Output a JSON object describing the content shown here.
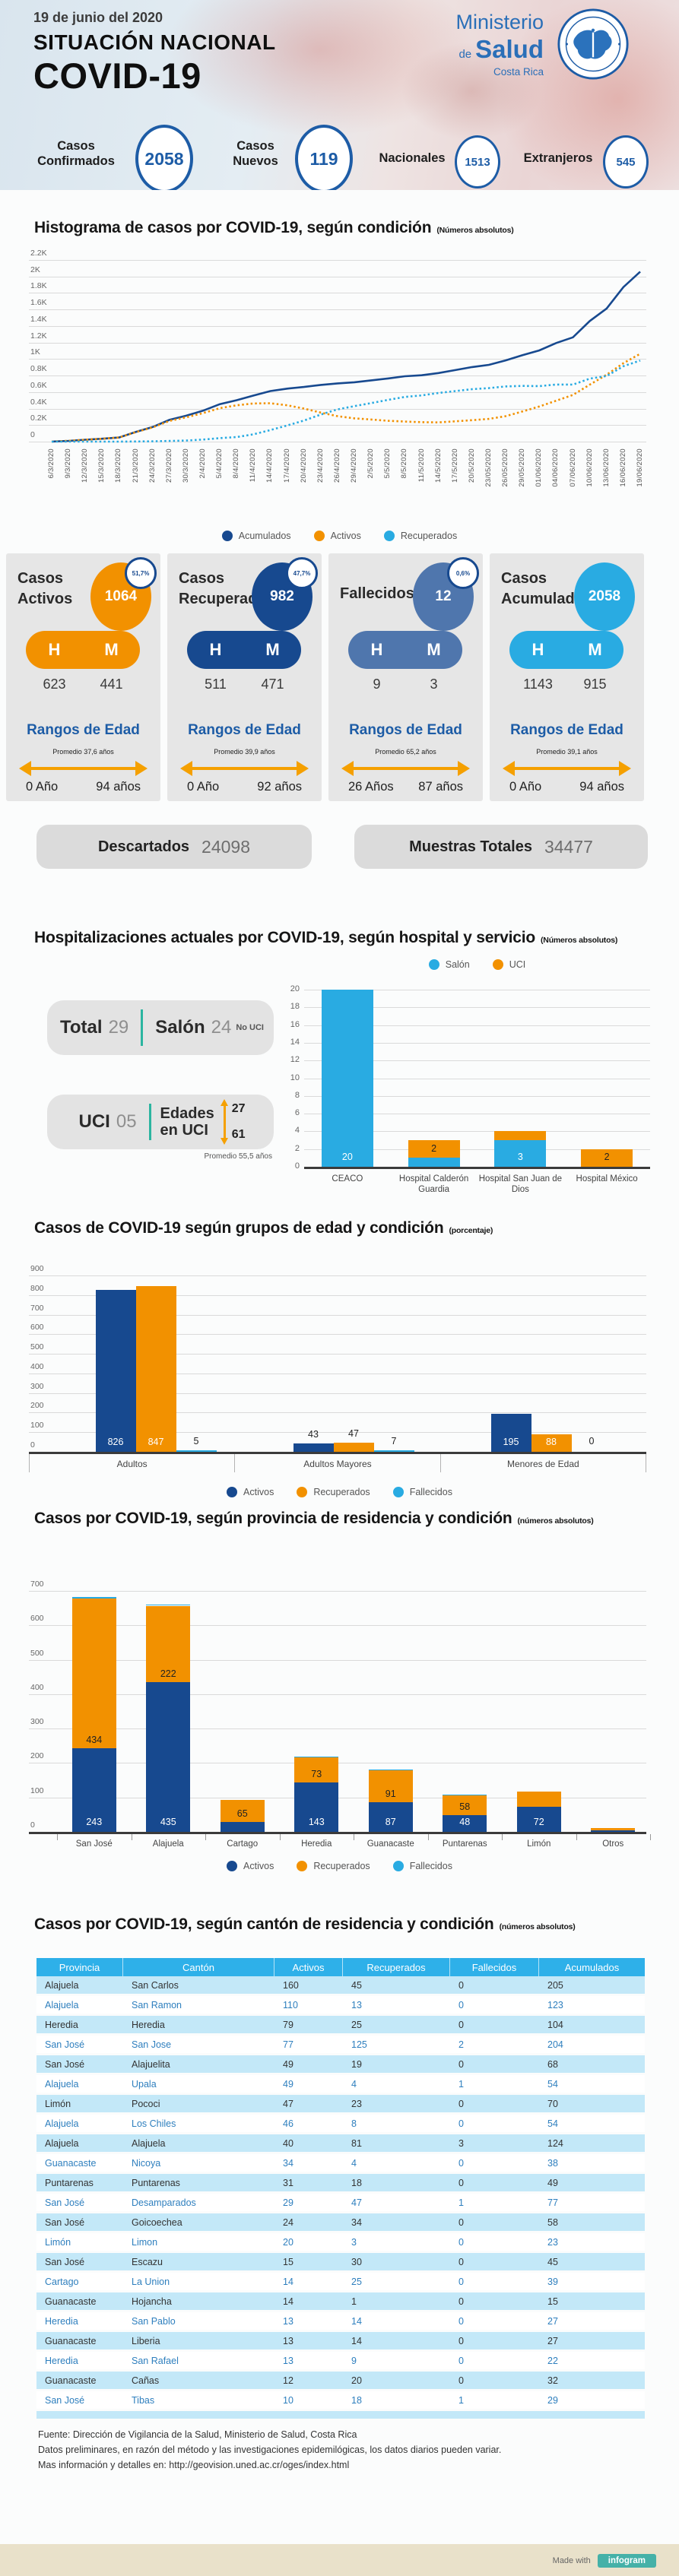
{
  "colors": {
    "accent_blue": "#1d5ca6",
    "dark_blue": "#17498f",
    "orange": "#f29100",
    "light_blue": "#29abe2",
    "steel_blue": "#4f76ad",
    "teal": "#2bb5a0",
    "infogram_teal": "#45b1a8"
  },
  "header": {
    "date": "19 de junio del 2020",
    "title_line1": "SITUACIÓN NACIONAL",
    "title_line2": "COVID-19",
    "ministry": {
      "line1": "Ministerio",
      "line2_small": "de",
      "line2_big": "Salud",
      "line3": "Costa Rica"
    }
  },
  "stats": [
    {
      "label1": "Casos",
      "label2": "Confirmados",
      "value": "2058",
      "size": "lg"
    },
    {
      "label1": "Casos",
      "label2": "Nuevos",
      "value": "119",
      "size": "lg"
    },
    {
      "label1": "Nacionales",
      "label2": "",
      "value": "1513",
      "size": "sm"
    },
    {
      "label1": "Extranjeros",
      "label2": "",
      "value": "545",
      "size": "sm"
    }
  ],
  "sections": {
    "histogram": {
      "title": "Histograma de casos por COVID-19, según condición",
      "subtitle": "(Números absolutos)"
    },
    "hospital": {
      "title": "Hospitalizaciones actuales por COVID-19, según hospital y servicio",
      "subtitle": "(Números absolutos)"
    },
    "age": {
      "title": "Casos de COVID-19 según grupos de edad y condición",
      "subtitle": "(porcentaje)"
    },
    "province": {
      "title": "Casos por COVID-19, según provincia de residencia y condición",
      "subtitle": "(números absolutos)"
    },
    "canton": {
      "title": "Casos por COVID-19, según cantón de residencia y condición",
      "subtitle": "(números absolutos)"
    }
  },
  "cards_common": {
    "h": "H",
    "m": "M",
    "rangos": "Rangos de Edad"
  },
  "cards": [
    {
      "title1": "Casos",
      "title2": "Activos",
      "value": "1064",
      "pct": "51,7%",
      "color": "#f29100",
      "hombres": "623",
      "mujeres": "441",
      "promedio": "Promedio 37,6 años",
      "edad_min": "0 Año",
      "edad_max": "94 años"
    },
    {
      "title1": "Casos",
      "title2": "Recuperados",
      "value": "982",
      "pct": "47,7%",
      "color": "#17498f",
      "hombres": "511",
      "mujeres": "471",
      "promedio": "Promedio 39,9 años",
      "edad_min": "0 Año",
      "edad_max": "92 años"
    },
    {
      "title1": "Fallecidos",
      "title2": "",
      "value": "12",
      "pct": "0,6%",
      "color": "#4f76ad",
      "hombres": "9",
      "mujeres": "3",
      "promedio": "Promedio 65,2 años",
      "edad_min": "26 Años",
      "edad_max": "87 años"
    },
    {
      "title1": "Casos",
      "title2": "Acumulados",
      "value": "2058",
      "pct": "",
      "color": "#29abe2",
      "hombres": "1143",
      "mujeres": "915",
      "promedio": "Promedio 39,1 años",
      "edad_min": "0 Año",
      "edad_max": "94 años"
    }
  ],
  "pills": {
    "descartados_label": "Descartados",
    "descartados_value": "24098",
    "muestras_label": "Muestras Totales",
    "muestras_value": "34477"
  },
  "hospital_info": {
    "total_label": "Total",
    "total_value": "29",
    "salon_label": "Salón",
    "salon_value": "24",
    "salon_note": "No UCI",
    "uci_label": "UCI",
    "uci_value": "05",
    "edades_line1": "Edades",
    "edades_line2": "en UCI",
    "edad_min": "27",
    "edad_max": "61",
    "promedio": "Promedio 55,5 años"
  },
  "table": {
    "headers": [
      "Provincia",
      "Cantón",
      "Activos",
      "Recuperados",
      "Fallecidos",
      "Acumulados"
    ],
    "rows": [
      [
        "Alajuela",
        "San Carlos",
        "160",
        "45",
        "0",
        "205"
      ],
      [
        "Alajuela",
        "San Ramon",
        "110",
        "13",
        "0",
        "123"
      ],
      [
        "Heredia",
        "Heredia",
        "79",
        "25",
        "0",
        "104"
      ],
      [
        "San José",
        "San Jose",
        "77",
        "125",
        "2",
        "204"
      ],
      [
        "San José",
        "Alajuelita",
        "49",
        "19",
        "0",
        "68"
      ],
      [
        "Alajuela",
        "Upala",
        "49",
        "4",
        "1",
        "54"
      ],
      [
        "Limón",
        "Pococi",
        "47",
        "23",
        "0",
        "70"
      ],
      [
        "Alajuela",
        "Los Chiles",
        "46",
        "8",
        "0",
        "54"
      ],
      [
        "Alajuela",
        "Alajuela",
        "40",
        "81",
        "3",
        "124"
      ],
      [
        "Guanacaste",
        "Nicoya",
        "34",
        "4",
        "0",
        "38"
      ],
      [
        "Puntarenas",
        "Puntarenas",
        "31",
        "18",
        "0",
        "49"
      ],
      [
        "San José",
        "Desamparados",
        "29",
        "47",
        "1",
        "77"
      ],
      [
        "San José",
        "Goicoechea",
        "24",
        "34",
        "0",
        "58"
      ],
      [
        "Limón",
        "Limon",
        "20",
        "3",
        "0",
        "23"
      ],
      [
        "San José",
        "Escazu",
        "15",
        "30",
        "0",
        "45"
      ],
      [
        "Cartago",
        "La Union",
        "14",
        "25",
        "0",
        "39"
      ],
      [
        "Guanacaste",
        "Hojancha",
        "14",
        "1",
        "0",
        "15"
      ],
      [
        "Heredia",
        "San Pablo",
        "13",
        "14",
        "0",
        "27"
      ],
      [
        "Guanacaste",
        "Liberia",
        "13",
        "14",
        "0",
        "27"
      ],
      [
        "Heredia",
        "San Rafael",
        "13",
        "9",
        "0",
        "22"
      ],
      [
        "Guanacaste",
        "Cañas",
        "12",
        "20",
        "0",
        "32"
      ],
      [
        "San José",
        "Tibas",
        "10",
        "18",
        "1",
        "29"
      ]
    ]
  },
  "footer": {
    "line1": "Fuente: Dirección de Vigilancia de la Salud, Ministerio de Salud, Costa Rica",
    "line2": "Datos preliminares, en razón del método y las investigaciones epidemilógicas, los datos diarios pueden variar.",
    "line3": "Mas información y detalles en: http://geovision.uned.ac.cr/oges/index.html"
  },
  "made_with": {
    "prefix": "Made with",
    "brand": "infogram"
  },
  "chart_data": [
    {
      "id": "histogram",
      "type": "line",
      "title": "Histograma de casos por COVID-19, según condición",
      "subtitle": "(Números absolutos)",
      "x": [
        "6/3/2020",
        "9/3/2020",
        "12/3/2020",
        "15/3/2020",
        "18/3/2020",
        "21/3/2020",
        "24/3/2020",
        "27/3/2020",
        "30/3/2020",
        "2/4/2020",
        "5/4/2020",
        "8/4/2020",
        "11/4/2020",
        "14/4/2020",
        "17/4/2020",
        "20/4/2020",
        "23/4/2020",
        "26/4/2020",
        "29/4/2020",
        "2/5/2020",
        "5/5/2020",
        "8/5/2020",
        "11/5/2020",
        "14/5/2020",
        "17/5/2020",
        "20/5/2020",
        "23/05/2020",
        "26/05/2020",
        "29/05/2020",
        "01/06/2020",
        "04/06/2020",
        "07/06/2020",
        "10/06/2020",
        "13/06/2020",
        "16/06/2020",
        "19/06/2020"
      ],
      "y_ticks": [
        "2.2K",
        "2K",
        "1.8K",
        "1.6K",
        "1.4K",
        "1.2K",
        "1K",
        "0.8K",
        "0.6K",
        "0.4K",
        "0.2K",
        "0"
      ],
      "ylim": [
        0,
        2200
      ],
      "grid": true,
      "legend_position": "bottom",
      "series": [
        {
          "name": "Acumulados",
          "color": "#17498f",
          "style": "solid",
          "values": [
            1,
            9,
            23,
            35,
            50,
            117,
            177,
            263,
            314,
            375,
            454,
            502,
            558,
            612,
            642,
            662,
            687,
            705,
            719,
            742,
            765,
            792,
            804,
            830,
            866,
            903,
            930,
            984,
            1047,
            1105,
            1194,
            1263,
            1461,
            1612,
            1871,
            2058
          ]
        },
        {
          "name": "Activos",
          "color": "#f29100",
          "style": "dashed",
          "values": [
            1,
            9,
            23,
            35,
            50,
            115,
            172,
            250,
            295,
            345,
            405,
            440,
            462,
            465,
            440,
            400,
            352,
            308,
            282,
            268,
            252,
            243,
            236,
            233,
            246,
            260,
            275,
            308,
            365,
            425,
            495,
            565,
            690,
            810,
            950,
            1064
          ]
        },
        {
          "name": "Recuperados",
          "color": "#29abe2",
          "style": "dashed",
          "values": [
            0,
            0,
            0,
            0,
            0,
            2,
            4,
            8,
            13,
            25,
            42,
            55,
            88,
            140,
            195,
            255,
            328,
            390,
            430,
            467,
            505,
            541,
            560,
            589,
            612,
            635,
            648,
            668,
            675,
            672,
            691,
            690,
            763,
            794,
            913,
            982
          ]
        }
      ]
    },
    {
      "id": "hospital",
      "type": "bar",
      "title": "Hospitalizaciones actuales por COVID-19, según hospital y servicio",
      "categories": [
        "CEACO",
        "Hospital Calderón Guardia",
        "Hospital San Juan de Dios",
        "Hospital México"
      ],
      "ylim": [
        0,
        20
      ],
      "y_ticks": [
        "20",
        "18",
        "16",
        "14",
        "12",
        "10",
        "8",
        "6",
        "4",
        "2",
        "0"
      ],
      "stacked": true,
      "legend_position": "top",
      "series": [
        {
          "name": "Salón",
          "color": "#29abe2",
          "values": [
            20,
            1,
            3,
            0
          ],
          "labels": [
            "20",
            "",
            "3",
            ""
          ]
        },
        {
          "name": "UCI",
          "color": "#f29100",
          "values": [
            0,
            2,
            1,
            2
          ],
          "labels": [
            "",
            "2",
            "",
            "2"
          ]
        }
      ]
    },
    {
      "id": "age",
      "type": "bar",
      "title": "Casos de COVID-19 según grupos de edad y condición",
      "categories": [
        "Adultos",
        "Adultos Mayores",
        "Menores de Edad"
      ],
      "ylim": [
        0,
        900
      ],
      "y_ticks": [
        "900",
        "800",
        "700",
        "600",
        "500",
        "400",
        "300",
        "200",
        "100",
        "0"
      ],
      "stacked": false,
      "legend_position": "bottom",
      "series": [
        {
          "name": "Activos",
          "color": "#17498f",
          "values": [
            826,
            43,
            195
          ]
        },
        {
          "name": "Recuperados",
          "color": "#f29100",
          "values": [
            847,
            47,
            88
          ]
        },
        {
          "name": "Fallecidos",
          "color": "#29abe2",
          "values": [
            5,
            7,
            0
          ]
        }
      ]
    },
    {
      "id": "province",
      "type": "bar",
      "title": "Casos por COVID-19, según provincia de residencia y condición",
      "categories": [
        "San José",
        "Alajuela",
        "Cartago",
        "Heredia",
        "Guanacaste",
        "Puntarenas",
        "Limón",
        "Otros"
      ],
      "ylim": [
        0,
        700
      ],
      "y_ticks": [
        "700",
        "600",
        "500",
        "400",
        "300",
        "200",
        "100",
        "0"
      ],
      "stacked": true,
      "legend_position": "bottom",
      "series": [
        {
          "name": "Activos",
          "color": "#17498f",
          "values": [
            243,
            435,
            28,
            143,
            87,
            48,
            72,
            4
          ],
          "labels": [
            "243",
            "435",
            "",
            "143",
            "87",
            "48",
            "72",
            ""
          ]
        },
        {
          "name": "Recuperados",
          "color": "#f29100",
          "values": [
            434,
            222,
            65,
            73,
            91,
            58,
            45,
            8
          ],
          "labels": [
            "434",
            "222",
            "65",
            "73",
            "91",
            "58",
            "",
            ""
          ]
        },
        {
          "name": "Fallecidos",
          "color": "#29abe2",
          "values": [
            5,
            4,
            0,
            1,
            1,
            1,
            0,
            0
          ],
          "labels": [
            "",
            "",
            "",
            "",
            "",
            "",
            "",
            ""
          ]
        }
      ]
    }
  ]
}
